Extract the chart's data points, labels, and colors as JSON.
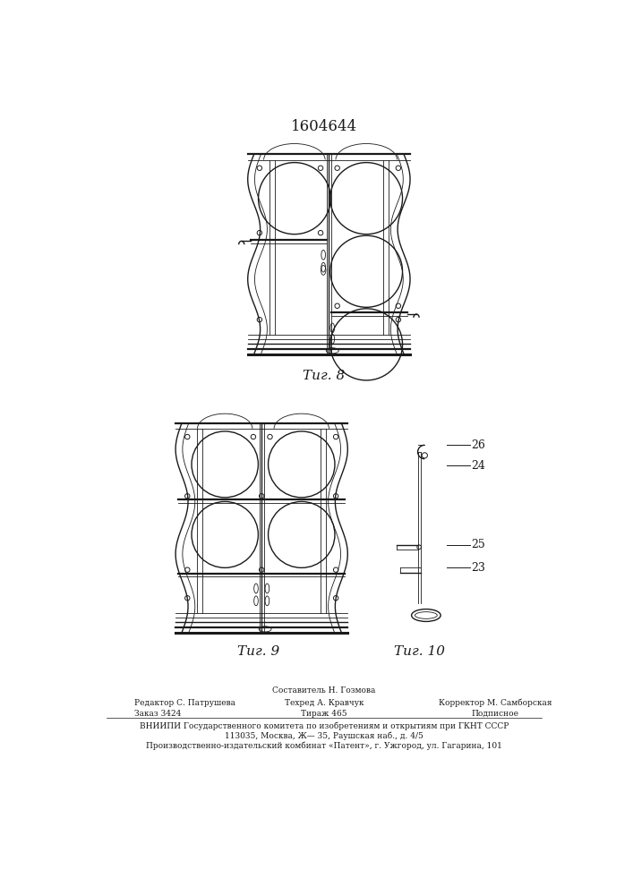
{
  "title": "1604644",
  "fig8_label": "Τиг. 8",
  "fig9_label": "Τиг. 9",
  "fig10_label": "Τиг. 10",
  "label_26": "26",
  "label_24": "24",
  "label_25": "25",
  "label_23": "23",
  "footer_line1": "Составитель Н. Гозмова",
  "footer_line2_left": "Редактор С. Патрушева",
  "footer_line2_mid": "Техред А. Кравчук",
  "footer_line2_right": "Корректор М. Самборская",
  "footer_line3_left": "Заказ 3424",
  "footer_line3_mid": "Тираж 465",
  "footer_line3_right": "Подписное",
  "footer_line4": "ВНИИПИ Государственного комитета по изобретениям и открытиям при ГКНТ СССР",
  "footer_line5": "113035, Москва, Ж— 35, Раушская наб., д. 4/5",
  "footer_line6": "Производственно-издательский комбинат «Патент», г. Ужгород, ул. Гагарина, 101",
  "bg_color": "#ffffff",
  "line_color": "#1a1a1a"
}
